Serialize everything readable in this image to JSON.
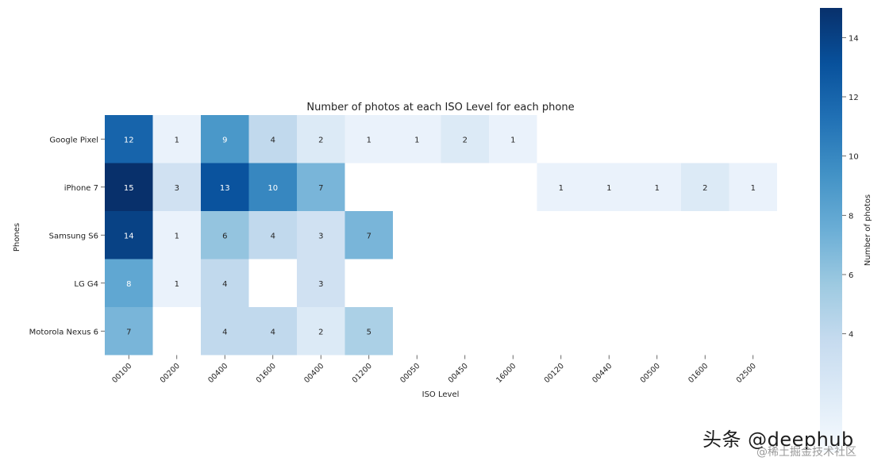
{
  "chart_data": {
    "type": "heatmap",
    "title": "Number of photos at each ISO Level for each phone",
    "xlabel": "ISO Level",
    "ylabel": "Phones",
    "x_categories": [
      "00100",
      "00200",
      "00400",
      "01600",
      "00400",
      "01200",
      "00050",
      "00450",
      "16000",
      "00120",
      "00440",
      "00500",
      "01600",
      "02500"
    ],
    "y_categories": [
      "Google Pixel",
      "iPhone 7",
      "Samsung S6",
      "LG G4",
      "Motorola Nexus 6"
    ],
    "values": [
      [
        12,
        1,
        9,
        4,
        2,
        1,
        1,
        2,
        1,
        null,
        null,
        null,
        null,
        null
      ],
      [
        15,
        3,
        13,
        10,
        7,
        null,
        null,
        null,
        null,
        1,
        1,
        1,
        2,
        1
      ],
      [
        14,
        1,
        6,
        4,
        3,
        7,
        null,
        null,
        null,
        null,
        null,
        null,
        null,
        null
      ],
      [
        8,
        1,
        4,
        null,
        3,
        null,
        null,
        null,
        null,
        null,
        null,
        null,
        null,
        null
      ],
      [
        7,
        null,
        4,
        4,
        2,
        5,
        null,
        null,
        null,
        null,
        null,
        null,
        null,
        null
      ]
    ],
    "colormap": "Blues",
    "vmin": 0,
    "vmax": 15,
    "colorbar": {
      "label": "Number of photos",
      "ticks": [
        4,
        6,
        8,
        10,
        12,
        14
      ]
    },
    "annotate": true,
    "grid": false
  },
  "watermark": {
    "line1": "头条 @deephub",
    "line2": "@稀土掘金技术社区"
  }
}
